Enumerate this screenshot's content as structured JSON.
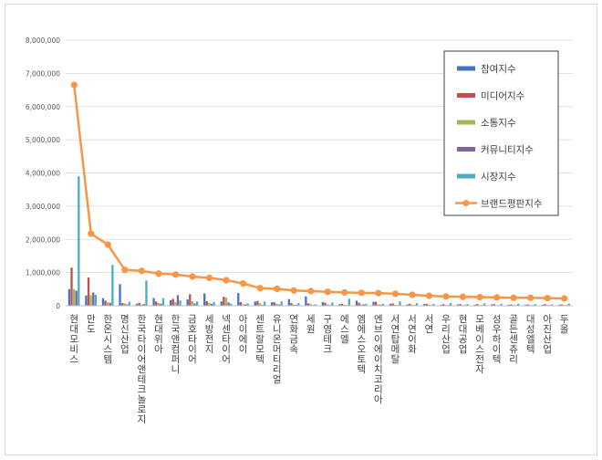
{
  "chart_data": {
    "type": "bar",
    "title": "",
    "xlabel": "",
    "ylabel": "",
    "ylim": [
      0,
      8000000
    ],
    "yticks": [
      "0",
      "1,000,000",
      "2,000,000",
      "3,000,000",
      "4,000,000",
      "5,000,000",
      "6,000,000",
      "7,000,000",
      "8,000,000"
    ],
    "categories": [
      "현대모비스",
      "만도",
      "한온시스템",
      "명신산업",
      "한국타이어앤테크놀로지",
      "현대위아",
      "한국앤컴퍼니",
      "금호타이어",
      "세방전지",
      "넥센타이어",
      "아이에이",
      "센트랄모텍",
      "유니온머티리얼",
      "연화금속",
      "세원",
      "구영테크",
      "에스엘",
      "엠에스오토텍",
      "엔브이에이치코리아",
      "서연탑메탈",
      "서연이화",
      "서연",
      "우리산업",
      "현대공업",
      "모베이스전자",
      "성우하이텍",
      "골든센츄리",
      "대성엘텍",
      "아진산업",
      "두올"
    ],
    "series": [
      {
        "name": "참여지수",
        "color": "#4472c4",
        "values": [
          500000,
          310000,
          230000,
          650000,
          60000,
          230000,
          170000,
          190000,
          370000,
          130000,
          380000,
          130000,
          110000,
          200000,
          280000,
          110000,
          50000,
          150000,
          120000,
          60000,
          40000,
          50000,
          30000,
          40000,
          30000,
          40000,
          30000,
          30000,
          30000,
          30000
        ]
      },
      {
        "name": "미디어지수",
        "color": "#c0504d",
        "values": [
          1150000,
          850000,
          150000,
          80000,
          90000,
          130000,
          210000,
          350000,
          140000,
          270000,
          110000,
          150000,
          100000,
          80000,
          70000,
          90000,
          60000,
          90000,
          120000,
          70000,
          60000,
          60000,
          50000,
          50000,
          50000,
          50000,
          40000,
          40000,
          50000,
          40000
        ]
      },
      {
        "name": "소통지수",
        "color": "#9bbb59",
        "values": [
          500000,
          320000,
          100000,
          80000,
          40000,
          80000,
          110000,
          140000,
          80000,
          250000,
          50000,
          80000,
          60000,
          40000,
          60000,
          40000,
          30000,
          40000,
          40000,
          30000,
          30000,
          30000,
          20000,
          20000,
          20000,
          20000,
          20000,
          20000,
          20000,
          20000
        ]
      },
      {
        "name": "커뮤니티지수",
        "color": "#8064a2",
        "values": [
          450000,
          400000,
          90000,
          40000,
          50000,
          60000,
          320000,
          70000,
          60000,
          100000,
          40000,
          30000,
          40000,
          30000,
          20000,
          20000,
          20000,
          40000,
          30000,
          20000,
          20000,
          20000,
          20000,
          20000,
          20000,
          20000,
          20000,
          20000,
          20000,
          20000
        ]
      },
      {
        "name": "시장지수",
        "color": "#4bacc6",
        "values": [
          3900000,
          330000,
          1230000,
          120000,
          760000,
          230000,
          160000,
          130000,
          110000,
          60000,
          70000,
          130000,
          130000,
          80000,
          40000,
          100000,
          210000,
          60000,
          60000,
          130000,
          80000,
          60000,
          80000,
          50000,
          70000,
          60000,
          60000,
          50000,
          40000,
          60000
        ]
      },
      {
        "name": "브랜드평판지수",
        "color": "#f79646",
        "values": [
          6650000,
          2170000,
          1840000,
          1080000,
          1050000,
          970000,
          940000,
          880000,
          840000,
          770000,
          670000,
          530000,
          510000,
          460000,
          440000,
          420000,
          400000,
          390000,
          380000,
          360000,
          330000,
          300000,
          280000,
          270000,
          260000,
          250000,
          240000,
          240000,
          230000,
          220000
        ]
      }
    ],
    "legend_position": "right"
  }
}
